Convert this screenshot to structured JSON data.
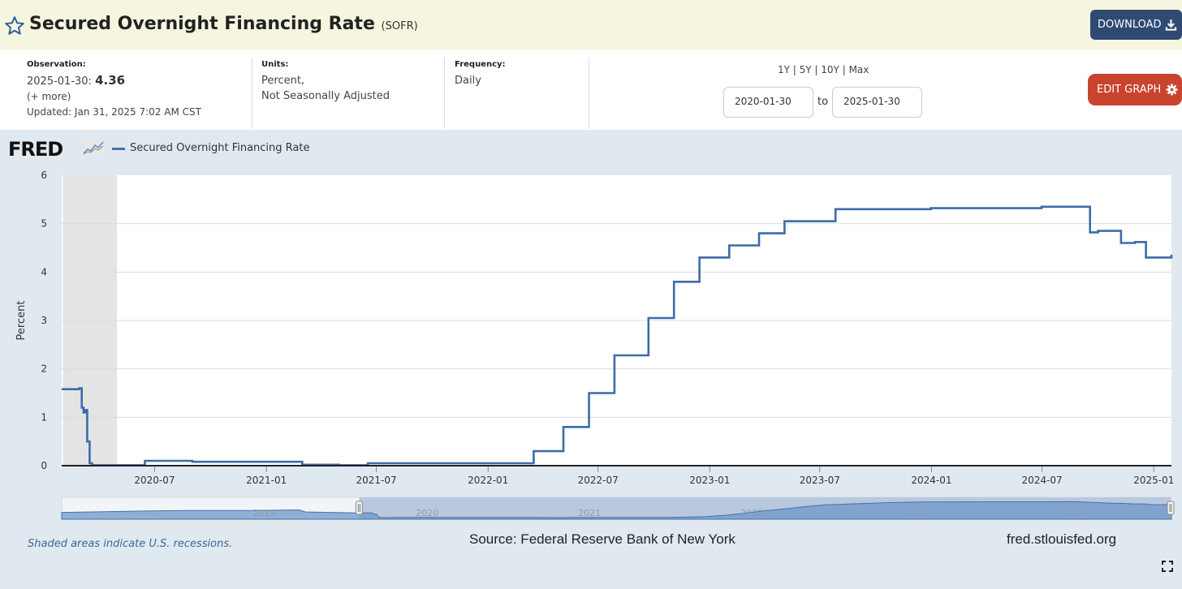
{
  "header": {
    "title": "Secured Overnight Financing Rate",
    "series_id": "(SOFR)",
    "download_label": "DOWNLOAD",
    "bg_color": "#f5f5e0"
  },
  "meta": {
    "observation_label": "Observation:",
    "observation_date": "2025-01-30:",
    "observation_value": "4.36",
    "more_link": "(+ more)",
    "updated": "Updated: Jan 31, 2025 7:02 AM CST",
    "units_label": "Units:",
    "units_line1": "Percent,",
    "units_line2": "Not Seasonally Adjusted",
    "frequency_label": "Frequency:",
    "frequency_value": "Daily",
    "ranges": {
      "y1": "1Y",
      "y5": "5Y",
      "y10": "10Y",
      "max": "Max",
      "sep": " | "
    },
    "start_date": "2020-01-30",
    "to_label": "to",
    "end_date": "2025-01-30",
    "edit_label": "EDIT GRAPH"
  },
  "legend": {
    "logo": "FRED",
    "series_label": "Secured Overnight Financing Rate"
  },
  "footer": {
    "recession_note": "Shaded areas indicate U.S. recessions.",
    "source": "Source: Federal Reserve Bank of New York",
    "url": "fred.stlouisfed.org"
  },
  "colors": {
    "line": "#3c6ca8",
    "recession": "#e4e4e4",
    "accent_blue": "#2f4a72",
    "accent_red": "#c9432e"
  },
  "chart_data": {
    "type": "line",
    "title": "Secured Overnight Financing Rate",
    "ylabel": "Percent",
    "xlabel": "",
    "ylim": [
      0,
      6
    ],
    "xlim": [
      "2020-01-30",
      "2025-01-30"
    ],
    "y_ticks": [
      0,
      1,
      2,
      3,
      4,
      5,
      6
    ],
    "x_ticks": [
      "2020-07",
      "2021-01",
      "2021-07",
      "2022-01",
      "2022-07",
      "2023-01",
      "2023-07",
      "2024-01",
      "2024-07",
      "2025-01"
    ],
    "recession": {
      "start": "2020-02-01",
      "end": "2020-04-30"
    },
    "navigator_labels": [
      "2019",
      "2020",
      "2021",
      "2022",
      "2023",
      "2024"
    ],
    "series": [
      {
        "name": "Secured Overnight Financing Rate",
        "x": [
          "2020-01-30",
          "2020-02-28",
          "2020-03-03",
          "2020-03-06",
          "2020-03-09",
          "2020-03-12",
          "2020-03-16",
          "2020-03-20",
          "2020-04-01",
          "2020-06-15",
          "2020-09-01",
          "2020-12-01",
          "2021-03-01",
          "2021-05-01",
          "2021-06-17",
          "2021-12-31",
          "2022-03-17",
          "2022-05-05",
          "2022-06-16",
          "2022-07-28",
          "2022-09-22",
          "2022-11-03",
          "2022-12-15",
          "2023-02-02",
          "2023-03-23",
          "2023-05-04",
          "2023-07-27",
          "2023-12-31",
          "2024-06-30",
          "2024-09-18",
          "2024-10-01",
          "2024-11-08",
          "2024-12-01",
          "2024-12-19",
          "2025-01-30"
        ],
        "y": [
          1.58,
          1.6,
          1.2,
          1.1,
          1.15,
          0.5,
          0.05,
          0.01,
          0.01,
          0.1,
          0.08,
          0.08,
          0.02,
          0.01,
          0.05,
          0.05,
          0.3,
          0.8,
          1.5,
          2.28,
          3.05,
          3.8,
          4.3,
          4.55,
          4.8,
          5.05,
          5.3,
          5.32,
          5.35,
          4.82,
          4.85,
          4.6,
          4.62,
          4.3,
          4.36
        ]
      }
    ]
  }
}
